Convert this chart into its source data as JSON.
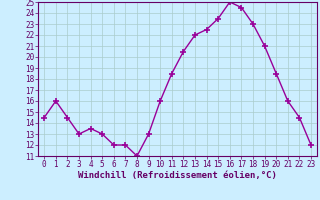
{
  "x": [
    0,
    1,
    2,
    3,
    4,
    5,
    6,
    7,
    8,
    9,
    10,
    11,
    12,
    13,
    14,
    15,
    16,
    17,
    18,
    19,
    20,
    21,
    22,
    23
  ],
  "y": [
    14.5,
    16.0,
    14.5,
    13.0,
    13.5,
    13.0,
    12.0,
    12.0,
    11.0,
    13.0,
    16.0,
    18.5,
    20.5,
    22.0,
    22.5,
    23.5,
    25.0,
    24.5,
    23.0,
    21.0,
    18.5,
    16.0,
    14.5,
    12.0
  ],
  "line_color": "#990099",
  "marker": "+",
  "marker_size": 4,
  "xlabel": "Windchill (Refroidissement éolien,°C)",
  "ylim": [
    11,
    25
  ],
  "xlim": [
    -0.5,
    23.5
  ],
  "yticks": [
    11,
    12,
    13,
    14,
    15,
    16,
    17,
    18,
    19,
    20,
    21,
    22,
    23,
    24,
    25
  ],
  "xticks": [
    0,
    1,
    2,
    3,
    4,
    5,
    6,
    7,
    8,
    9,
    10,
    11,
    12,
    13,
    14,
    15,
    16,
    17,
    18,
    19,
    20,
    21,
    22,
    23
  ],
  "bg_color": "#cceeff",
  "grid_color": "#aacccc",
  "tick_color": "#660066",
  "label_color": "#660066",
  "spine_color": "#660066",
  "tick_fontsize": 5.5,
  "xlabel_fontsize": 6.5,
  "linewidth": 1.0,
  "marker_color": "#990099"
}
